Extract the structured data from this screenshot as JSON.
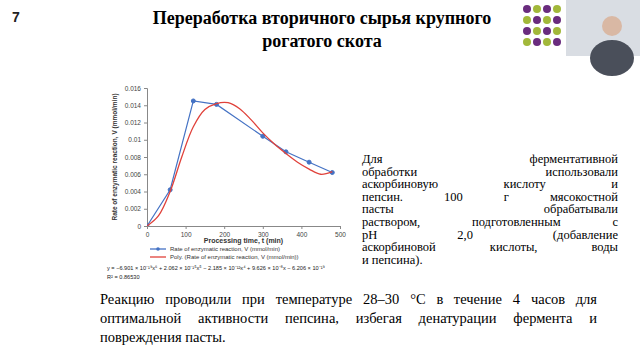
{
  "slide": {
    "number": "7",
    "title": [
      "Переработка вторичного сырья крупного",
      "рогатого скота"
    ],
    "side_text": [
      "Для ферментативной",
      "обработки использовали",
      "аскорбиновую кислоту и",
      "пепсин. 100 г мясокостной",
      "пасты обрабатывали",
      "раствором, подготовленным с",
      "pH 2,0 (добавление",
      "аскорбиновой кислоты, воды",
      "и пепсина)."
    ],
    "bottom_text": [
      "Реакцию проводили при температуре 28–30 °С в течение 4 часов для",
      "оптимальной активности пепсина, избегая денатурации фермента и",
      "повреждения пасты."
    ]
  },
  "chart_data": {
    "type": "line",
    "x_label": "Processing time, t (min)",
    "y_label": "Rate of enzymatic reaction, V (mmol/min)",
    "xlim": [
      0,
      500
    ],
    "xticks": [
      0,
      100,
      200,
      300,
      400,
      500
    ],
    "ylim": [
      0,
      0.016
    ],
    "yticks": [
      0,
      0.002,
      0.004,
      0.006,
      0.008,
      0.01,
      0.012,
      0.014,
      0.016
    ],
    "grid": false,
    "legend": "bottom",
    "annotations": [
      "y = −6.901 × 10⁻¹⁹x⁶ + 2.062 × 10⁻¹⁵x⁵ − 2.185 × 10⁻¹²x⁴ + 9.626 × 10⁻⁸x − 6.206 × 10⁻¹⁹",
      "R² = 0.86530"
    ],
    "series": [
      {
        "name": "Rate of enzymatic reaction, V (mmol/min)",
        "color": "#4472c4",
        "marker": "circle",
        "line_style": "solid",
        "x": [
          0,
          60,
          120,
          180,
          300,
          360,
          420,
          480
        ],
        "values": [
          0,
          0.0042,
          0.0145,
          0.0141,
          0.0104,
          0.0086,
          0.0074,
          0.0062
        ]
      },
      {
        "name": "Poly. (Rate of enzymatic reaction, V (mmol/min))",
        "color": "#e0413a",
        "marker": "none",
        "line_style": "smooth",
        "x": [
          0,
          30,
          60,
          90,
          120,
          150,
          180,
          210,
          240,
          270,
          300,
          330,
          360,
          390,
          420,
          450,
          480
        ],
        "values": [
          0,
          0.0012,
          0.004,
          0.008,
          0.0115,
          0.0135,
          0.0142,
          0.0143,
          0.0136,
          0.0123,
          0.0108,
          0.0095,
          0.0084,
          0.0074,
          0.0066,
          0.006,
          0.0063
        ]
      }
    ]
  }
}
